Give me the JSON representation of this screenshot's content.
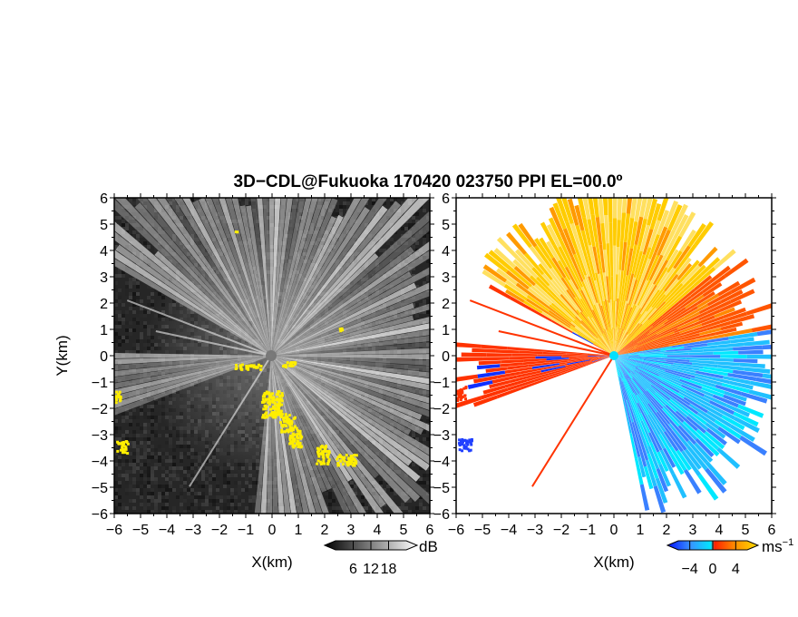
{
  "chart_data": {
    "title": "3D−CDL@Fukuoka 170420 023750 PPI EL=00.0º",
    "panels": [
      {
        "type": "heatmap",
        "variable": "reflectivity",
        "xlabel": "X(km)",
        "ylabel": "Y(km)",
        "xlim": [
          -6,
          6
        ],
        "ylim": [
          -6,
          6
        ],
        "xticks": [
          -6,
          -5,
          -4,
          -3,
          -2,
          -1,
          0,
          1,
          2,
          3,
          4,
          5,
          6
        ],
        "yticks": [
          -6,
          -5,
          -4,
          -3,
          -2,
          -1,
          0,
          1,
          2,
          3,
          4,
          5,
          6
        ],
        "colorbar": {
          "unit": "dB",
          "ticks": [
            6,
            12,
            18
          ],
          "range": [
            0,
            24
          ],
          "colors": [
            "#000000",
            "#ffffff"
          ]
        },
        "highlight_color": "#ffee00"
      },
      {
        "type": "heatmap",
        "variable": "doppler velocity",
        "xlabel": "X(km)",
        "ylabel": "",
        "xlim": [
          -6,
          6
        ],
        "ylim": [
          -6,
          6
        ],
        "xticks": [
          -6,
          -5,
          -4,
          -3,
          -2,
          -1,
          0,
          1,
          2,
          3,
          4,
          5,
          6
        ],
        "yticks": [
          -6,
          -5,
          -4,
          -3,
          -2,
          -1,
          0,
          1,
          2,
          3,
          4,
          5,
          6
        ],
        "colorbar": {
          "unit": "ms",
          "unit_exp": "−1",
          "ticks": [
            -4,
            0,
            4
          ],
          "range": [
            -6,
            6
          ],
          "colors": [
            "#0010ff",
            "#3a90ff",
            "#00e8ff",
            "#ff2000",
            "#ff9000",
            "#ffdd00"
          ]
        }
      }
    ]
  }
}
